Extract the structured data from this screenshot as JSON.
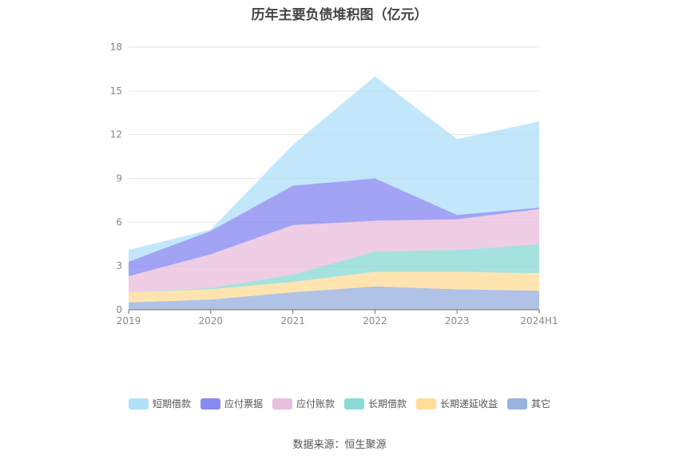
{
  "chart_data": {
    "type": "area",
    "title": "历年主要负债堆积图（亿元）",
    "categories": [
      "2019",
      "2020",
      "2021",
      "2022",
      "2023",
      "2024H1"
    ],
    "ylim": [
      0,
      18
    ],
    "yticks": [
      0,
      3,
      6,
      9,
      12,
      15,
      18
    ],
    "grid": true,
    "legend_position": "bottom",
    "stacked": true,
    "series": [
      {
        "name": "其它",
        "color": "#8FAADC",
        "values": [
          0.5,
          0.7,
          1.2,
          1.6,
          1.4,
          1.3
        ]
      },
      {
        "name": "长期递延收益",
        "color": "#FFD98E",
        "values": [
          0.7,
          0.7,
          0.7,
          1.0,
          1.2,
          1.2
        ]
      },
      {
        "name": "长期借款",
        "color": "#7FD6D0",
        "values": [
          0.0,
          0.1,
          0.5,
          1.4,
          1.5,
          2.0
        ]
      },
      {
        "name": "应付账款",
        "color": "#E7B8DA",
        "values": [
          1.1,
          2.3,
          3.4,
          2.1,
          2.1,
          2.4
        ]
      },
      {
        "name": "应付票据",
        "color": "#7B7CF0",
        "values": [
          1.0,
          1.6,
          2.7,
          2.9,
          0.3,
          0.1
        ]
      },
      {
        "name": "短期借款",
        "color": "#A8DDF8",
        "values": [
          0.8,
          0.1,
          2.8,
          7.0,
          5.2,
          5.9
        ]
      }
    ]
  },
  "legend_order": [
    "短期借款",
    "应付票据",
    "应付账款",
    "长期借款",
    "长期递延收益",
    "其它"
  ],
  "source_text": "数据来源：恒生聚源"
}
